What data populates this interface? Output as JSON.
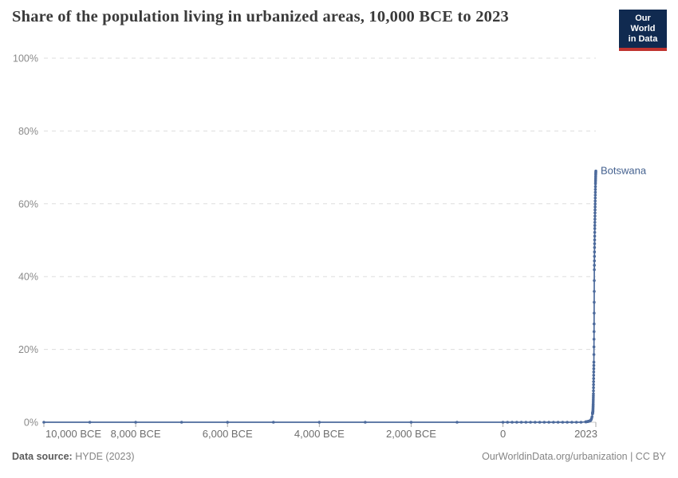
{
  "header": {
    "title": "Share of the population living in urbanized areas, 10,000 BCE to 2023",
    "logo": {
      "line1": "Our World",
      "line2": "in Data"
    }
  },
  "footer": {
    "source_label": "Data source:",
    "source_value": "HYDE (2023)",
    "credit": "OurWorldinData.org/urbanization | CC BY"
  },
  "colors": {
    "accent": "#4c6a9c",
    "entity_label": "#44618f",
    "grid": "#dddddd",
    "zero_axis": "#c8c8c8",
    "axis_text": "#8a8a8a",
    "x_axis_text": "#6e6e6e",
    "tick_mark": "#a8a8a8",
    "title_text": "#3a3a3a",
    "logo_bg": "#102a50",
    "logo_red": "#c0332f"
  },
  "chart_data": {
    "type": "line",
    "title": "Share of the population living in urbanized areas, 10,000 BCE to 2023",
    "xlabel": "",
    "ylabel": "",
    "xlim": [
      -10000,
      2023
    ],
    "ylim": [
      0,
      100
    ],
    "grid": "horizontal-dashed",
    "legend_position": "end-of-line-label",
    "y_ticks": [
      {
        "v": 0,
        "label": "0%"
      },
      {
        "v": 20,
        "label": "20%"
      },
      {
        "v": 40,
        "label": "40%"
      },
      {
        "v": 60,
        "label": "60%"
      },
      {
        "v": 80,
        "label": "80%"
      },
      {
        "v": 100,
        "label": "100%"
      }
    ],
    "x_ticks": [
      {
        "v": -10000,
        "label": "10,000 BCE"
      },
      {
        "v": -8000,
        "label": "8,000 BCE"
      },
      {
        "v": -6000,
        "label": "6,000 BCE"
      },
      {
        "v": -4000,
        "label": "4,000 BCE"
      },
      {
        "v": -2000,
        "label": "2,000 BCE"
      },
      {
        "v": 0,
        "label": "0"
      },
      {
        "v": 2023,
        "label": "2023"
      }
    ],
    "series": [
      {
        "name": "Botswana",
        "color": "#4c6a9c",
        "points": [
          [
            -10000,
            0
          ],
          [
            -9000,
            0
          ],
          [
            -8000,
            0
          ],
          [
            -7000,
            0
          ],
          [
            -6000,
            0
          ],
          [
            -5000,
            0
          ],
          [
            -4000,
            0
          ],
          [
            -3000,
            0
          ],
          [
            -2000,
            0
          ],
          [
            -1000,
            0
          ],
          [
            0,
            0
          ],
          [
            100,
            0
          ],
          [
            200,
            0
          ],
          [
            300,
            0
          ],
          [
            400,
            0
          ],
          [
            500,
            0
          ],
          [
            600,
            0
          ],
          [
            700,
            0
          ],
          [
            800,
            0
          ],
          [
            900,
            0
          ],
          [
            1000,
            0
          ],
          [
            1100,
            0
          ],
          [
            1200,
            0
          ],
          [
            1300,
            0
          ],
          [
            1400,
            0
          ],
          [
            1500,
            0
          ],
          [
            1600,
            0
          ],
          [
            1700,
            0
          ],
          [
            1800,
            0.1
          ],
          [
            1850,
            0.2
          ],
          [
            1900,
            0.4
          ],
          [
            1910,
            0.5
          ],
          [
            1920,
            0.7
          ],
          [
            1930,
            1.0
          ],
          [
            1940,
            1.5
          ],
          [
            1950,
            2.3
          ],
          [
            1955,
            2.7
          ],
          [
            1960,
            3.1
          ],
          [
            1965,
            5.0
          ],
          [
            1970,
            7.8
          ],
          [
            1975,
            12.0
          ],
          [
            1980,
            16.5
          ],
          [
            1985,
            27.0
          ],
          [
            1990,
            41.9
          ],
          [
            1995,
            48.0
          ],
          [
            2000,
            53.2
          ],
          [
            2005,
            57.5
          ],
          [
            2010,
            61.6
          ],
          [
            2015,
            65.5
          ],
          [
            2020,
            68.0
          ],
          [
            2023,
            69.0
          ]
        ]
      }
    ]
  }
}
